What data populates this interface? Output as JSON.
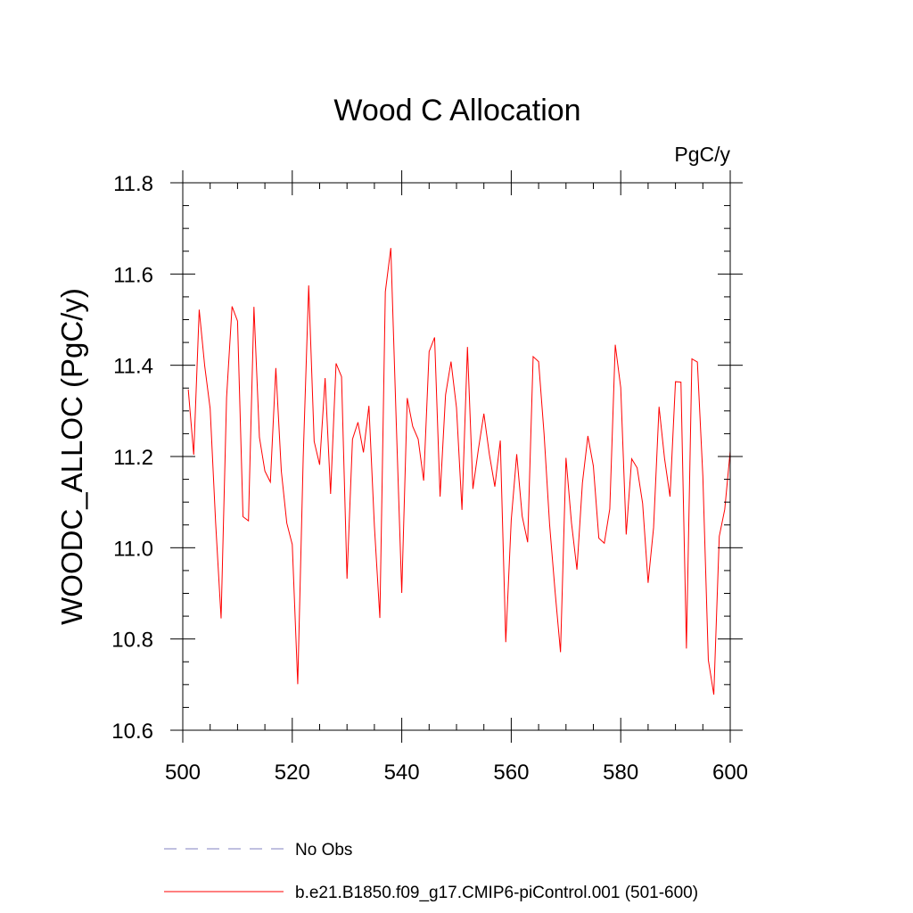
{
  "chart_data": {
    "type": "line",
    "title": "Wood C Allocation",
    "units": "PgC/y",
    "xlabel": "",
    "ylabel": "WOODC_ALLOC  (PgC/y)",
    "xlim": [
      500,
      600
    ],
    "ylim": [
      10.6,
      11.8
    ],
    "x_ticks": [
      "500",
      "520",
      "540",
      "560",
      "580",
      "600"
    ],
    "y_ticks": [
      "10.6",
      "10.8",
      "11.0",
      "11.2",
      "11.4",
      "11.6",
      "11.8"
    ],
    "grid": false,
    "legend_position": "bottom",
    "series": [
      {
        "name": "No Obs",
        "color": "#8080c0",
        "style": "dashed",
        "x": [],
        "y": []
      },
      {
        "name": "b.e21.B1850.f09_g17.CMIP6-piControl.001 (501-600)",
        "color": "#ff0000",
        "style": "solid",
        "x": [
          501,
          502,
          503,
          504,
          505,
          506,
          507,
          508,
          509,
          510,
          511,
          512,
          513,
          514,
          515,
          516,
          517,
          518,
          519,
          520,
          521,
          522,
          523,
          524,
          525,
          526,
          527,
          528,
          529,
          530,
          531,
          532,
          533,
          534,
          535,
          536,
          537,
          538,
          539,
          540,
          541,
          542,
          543,
          544,
          545,
          546,
          547,
          548,
          549,
          550,
          551,
          552,
          553,
          554,
          555,
          556,
          557,
          558,
          559,
          560,
          561,
          562,
          563,
          564,
          565,
          566,
          567,
          568,
          569,
          570,
          571,
          572,
          573,
          574,
          575,
          576,
          577,
          578,
          579,
          580,
          581,
          582,
          583,
          584,
          585,
          586,
          587,
          588,
          589,
          590,
          591,
          592,
          593,
          594,
          595,
          596,
          597,
          598,
          599,
          600
        ],
        "y": [
          11.347,
          11.204,
          11.522,
          11.399,
          11.305,
          11.055,
          10.845,
          11.329,
          11.529,
          11.497,
          11.068,
          11.059,
          11.528,
          11.242,
          11.168,
          11.144,
          11.394,
          11.168,
          11.054,
          11.007,
          10.701,
          11.198,
          11.575,
          11.233,
          11.182,
          11.372,
          11.118,
          11.404,
          11.375,
          10.932,
          11.238,
          11.275,
          11.209,
          11.311,
          11.048,
          10.846,
          11.561,
          11.657,
          11.273,
          10.901,
          11.328,
          11.266,
          11.238,
          11.147,
          11.43,
          11.461,
          11.112,
          11.335,
          11.408,
          11.307,
          11.083,
          11.44,
          11.129,
          11.216,
          11.294,
          11.205,
          11.134,
          11.235,
          10.793,
          11.061,
          11.205,
          11.069,
          11.012,
          11.419,
          11.408,
          11.249,
          11.052,
          10.905,
          10.771,
          11.197,
          11.055,
          10.952,
          11.142,
          11.245,
          11.179,
          11.021,
          11.01,
          11.085,
          11.445,
          11.351,
          11.029,
          11.195,
          11.175,
          11.097,
          10.923,
          11.044,
          11.309,
          11.196,
          11.112,
          11.364,
          11.363,
          10.779,
          11.414,
          11.407,
          11.157,
          10.754,
          10.678,
          11.025,
          11.084,
          11.212
        ]
      }
    ]
  }
}
